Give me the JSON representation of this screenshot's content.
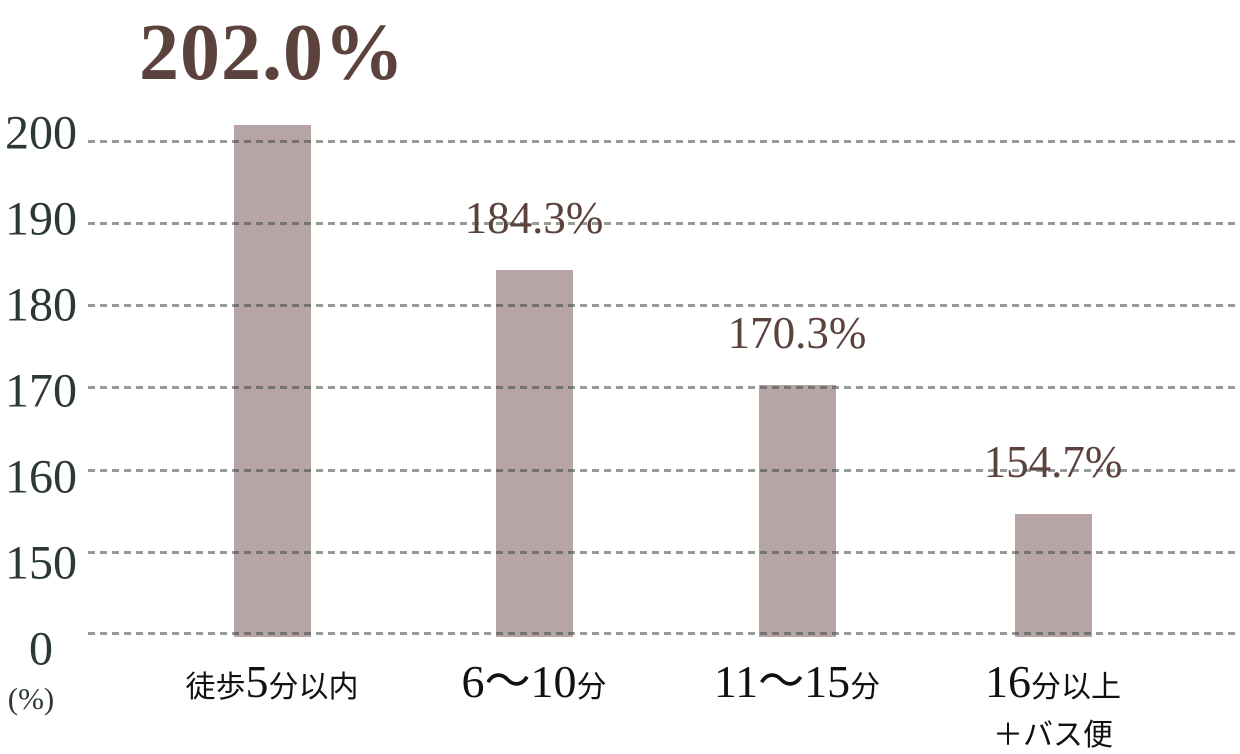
{
  "chart_data": {
    "type": "bar",
    "title": "",
    "unit_label": "(%)",
    "ylabel": "(%)",
    "y_ticks": [
      200,
      190,
      180,
      170,
      160,
      150,
      0
    ],
    "axis_break_between": [
      0,
      150
    ],
    "ylim_display": [
      150,
      205
    ],
    "grid": "dashed horizontal lines, on",
    "legend": "none",
    "categories": [
      "徒歩5分以内",
      "6〜10分",
      "11〜15分",
      "16分以上＋バス便"
    ],
    "values": [
      202.0,
      184.3,
      170.3,
      154.7
    ],
    "value_labels": [
      "202.0%",
      "184.3%",
      "170.3%",
      "154.7%"
    ],
    "emphasized_index": 0,
    "category_lines": [
      [
        [
          {
            "text": "徒歩",
            "num": false
          },
          {
            "text": "5",
            "num": true
          },
          {
            "text": "分以内",
            "num": false
          }
        ]
      ],
      [
        [
          {
            "text": "6〜10",
            "num": true
          },
          {
            "text": "分",
            "num": false
          }
        ]
      ],
      [
        [
          {
            "text": "11〜15",
            "num": true
          },
          {
            "text": "分",
            "num": false
          }
        ]
      ],
      [
        [
          {
            "text": "16",
            "num": true
          },
          {
            "text": "分以上",
            "num": false
          }
        ],
        [
          {
            "text": "＋バス便",
            "num": false
          }
        ]
      ]
    ]
  },
  "colors": {
    "background": "#ffffff",
    "bar": "#b7a5a5",
    "value_label": "#5c423d",
    "axis_tick_label": "#2b3833",
    "category_label": "#111111",
    "gridline": "#3e4a44"
  }
}
